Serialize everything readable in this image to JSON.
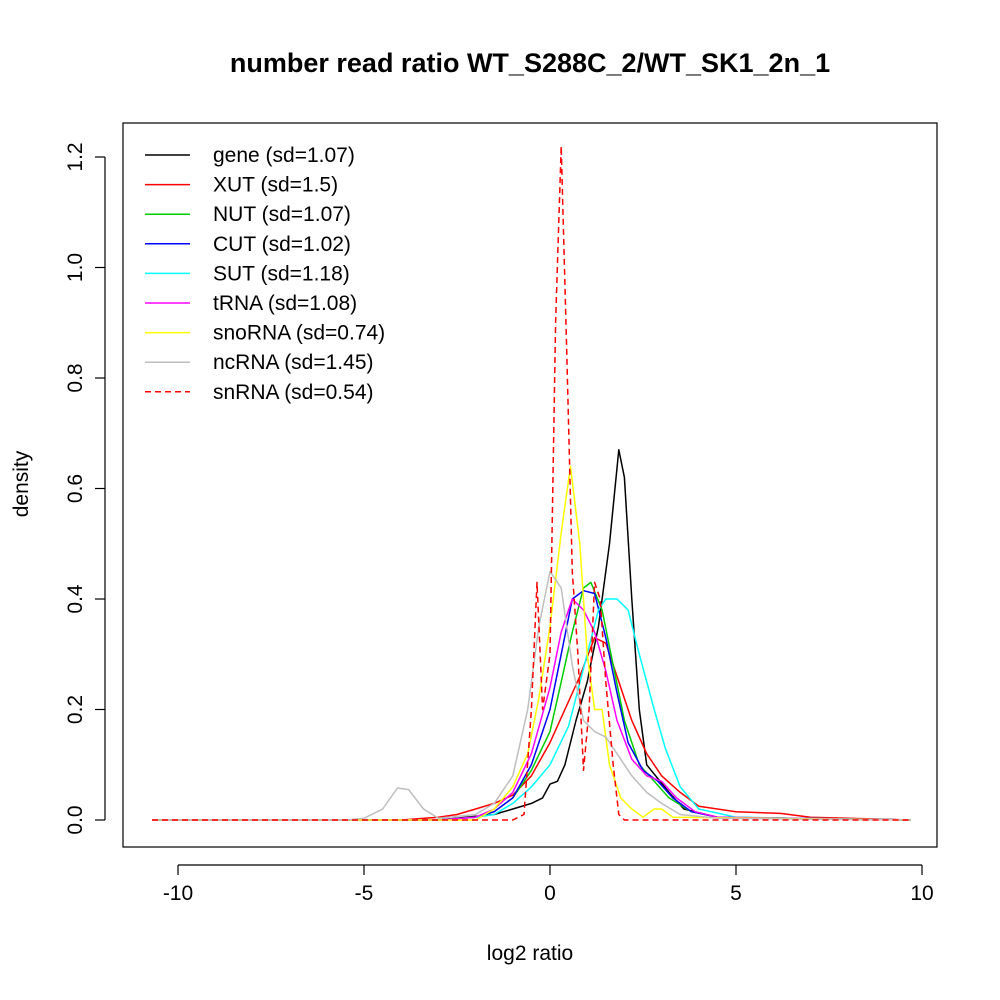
{
  "chart_data": {
    "type": "line",
    "title": "number read ratio WT_S288C_2/WT_SK1_2n_1",
    "xlabel": "log2 ratio",
    "ylabel": "density",
    "xlim": [
      -10.7,
      9.7
    ],
    "ylim": [
      0.0,
      1.22
    ],
    "x_ticks": [
      -10,
      -5,
      0,
      5,
      10
    ],
    "x_tick_labels": [
      "-10",
      "-5",
      "0",
      "5",
      "10"
    ],
    "y_ticks": [
      0.0,
      0.2,
      0.4,
      0.6,
      0.8,
      1.0,
      1.2
    ],
    "y_tick_labels": [
      "0.0",
      "0.2",
      "0.4",
      "0.6",
      "0.8",
      "1.0",
      "1.2"
    ],
    "grid": false,
    "legend_position": "top-left",
    "series": [
      {
        "name": "gene (sd=1.07)",
        "color": "#000000",
        "dashed": false,
        "points": [
          [
            -10.7,
            0
          ],
          [
            -3,
            0
          ],
          [
            -1.5,
            0.01
          ],
          [
            -1,
            0.02
          ],
          [
            -0.5,
            0.03
          ],
          [
            -0.2,
            0.04
          ],
          [
            0,
            0.065
          ],
          [
            0.2,
            0.07
          ],
          [
            0.4,
            0.1
          ],
          [
            0.7,
            0.18
          ],
          [
            1,
            0.25
          ],
          [
            1.3,
            0.35
          ],
          [
            1.6,
            0.5
          ],
          [
            1.85,
            0.67
          ],
          [
            2,
            0.62
          ],
          [
            2.2,
            0.4
          ],
          [
            2.4,
            0.2
          ],
          [
            2.6,
            0.1
          ],
          [
            2.9,
            0.075
          ],
          [
            3.2,
            0.05
          ],
          [
            3.6,
            0.02
          ],
          [
            4.5,
            0.005
          ],
          [
            9.7,
            0
          ]
        ]
      },
      {
        "name": "XUT (sd=1.5)",
        "color": "#ff0000",
        "dashed": false,
        "points": [
          [
            -10.7,
            0
          ],
          [
            -4,
            0
          ],
          [
            -3,
            0.005
          ],
          [
            -2.5,
            0.01
          ],
          [
            -2,
            0.02
          ],
          [
            -1.5,
            0.03
          ],
          [
            -1,
            0.045
          ],
          [
            -0.5,
            0.08
          ],
          [
            0,
            0.14
          ],
          [
            0.4,
            0.2
          ],
          [
            0.8,
            0.26
          ],
          [
            1.2,
            0.33
          ],
          [
            1.5,
            0.32
          ],
          [
            1.8,
            0.26
          ],
          [
            2.2,
            0.18
          ],
          [
            2.6,
            0.12
          ],
          [
            3,
            0.08
          ],
          [
            3.5,
            0.05
          ],
          [
            4,
            0.025
          ],
          [
            5,
            0.015
          ],
          [
            6.2,
            0.012
          ],
          [
            7,
            0.005
          ],
          [
            9.7,
            0
          ]
        ]
      },
      {
        "name": "NUT (sd=1.07)",
        "color": "#00cd00",
        "dashed": false,
        "points": [
          [
            -10.7,
            0
          ],
          [
            -3,
            0
          ],
          [
            -2,
            0.005
          ],
          [
            -1.5,
            0.015
          ],
          [
            -1,
            0.04
          ],
          [
            -0.5,
            0.09
          ],
          [
            0,
            0.16
          ],
          [
            0.3,
            0.25
          ],
          [
            0.6,
            0.34
          ],
          [
            0.9,
            0.42
          ],
          [
            1.1,
            0.43
          ],
          [
            1.4,
            0.38
          ],
          [
            1.7,
            0.28
          ],
          [
            2,
            0.18
          ],
          [
            2.4,
            0.1
          ],
          [
            2.8,
            0.07
          ],
          [
            3.2,
            0.04
          ],
          [
            3.8,
            0.015
          ],
          [
            4.5,
            0.005
          ],
          [
            9.7,
            0
          ]
        ]
      },
      {
        "name": "CUT (sd=1.02)",
        "color": "#0000ff",
        "dashed": false,
        "points": [
          [
            -10.7,
            0
          ],
          [
            -3,
            0
          ],
          [
            -2,
            0.005
          ],
          [
            -1.5,
            0.015
          ],
          [
            -1,
            0.04
          ],
          [
            -0.5,
            0.1
          ],
          [
            0,
            0.2
          ],
          [
            0.3,
            0.3
          ],
          [
            0.6,
            0.4
          ],
          [
            0.9,
            0.415
          ],
          [
            1.2,
            0.41
          ],
          [
            1.5,
            0.33
          ],
          [
            1.8,
            0.23
          ],
          [
            2.1,
            0.14
          ],
          [
            2.5,
            0.09
          ],
          [
            2.9,
            0.07
          ],
          [
            3.3,
            0.04
          ],
          [
            3.8,
            0.015
          ],
          [
            4.5,
            0.005
          ],
          [
            9.7,
            0
          ]
        ]
      },
      {
        "name": "SUT (sd=1.18)",
        "color": "#00ffff",
        "dashed": false,
        "points": [
          [
            -10.7,
            0
          ],
          [
            -3,
            0
          ],
          [
            -2,
            0.005
          ],
          [
            -1.5,
            0.01
          ],
          [
            -1,
            0.03
          ],
          [
            -0.5,
            0.06
          ],
          [
            0,
            0.1
          ],
          [
            0.5,
            0.17
          ],
          [
            1,
            0.3
          ],
          [
            1.3,
            0.38
          ],
          [
            1.5,
            0.4
          ],
          [
            1.8,
            0.4
          ],
          [
            2.1,
            0.38
          ],
          [
            2.4,
            0.3
          ],
          [
            2.8,
            0.2
          ],
          [
            3.1,
            0.13
          ],
          [
            3.5,
            0.06
          ],
          [
            4,
            0.02
          ],
          [
            5,
            0.005
          ],
          [
            9.7,
            0
          ]
        ]
      },
      {
        "name": "tRNA (sd=1.08)",
        "color": "#ff00ff",
        "dashed": false,
        "points": [
          [
            -10.7,
            0
          ],
          [
            -3,
            0
          ],
          [
            -2,
            0.005
          ],
          [
            -1.5,
            0.02
          ],
          [
            -1,
            0.05
          ],
          [
            -0.5,
            0.12
          ],
          [
            0,
            0.24
          ],
          [
            0.3,
            0.34
          ],
          [
            0.6,
            0.4
          ],
          [
            0.9,
            0.38
          ],
          [
            1.2,
            0.34
          ],
          [
            1.5,
            0.27
          ],
          [
            1.8,
            0.18
          ],
          [
            2.2,
            0.11
          ],
          [
            2.6,
            0.08
          ],
          [
            3,
            0.07
          ],
          [
            3.4,
            0.04
          ],
          [
            3.9,
            0.015
          ],
          [
            4.5,
            0.005
          ],
          [
            9.7,
            0
          ]
        ]
      },
      {
        "name": "snoRNA (sd=0.74)",
        "color": "#ffff00",
        "dashed": false,
        "points": [
          [
            -10.7,
            0
          ],
          [
            -2,
            0
          ],
          [
            -1.5,
            0.02
          ],
          [
            -1,
            0.06
          ],
          [
            -0.6,
            0.12
          ],
          [
            -0.3,
            0.22
          ],
          [
            0,
            0.35
          ],
          [
            0.3,
            0.52
          ],
          [
            0.55,
            0.64
          ],
          [
            0.8,
            0.5
          ],
          [
            1,
            0.3
          ],
          [
            1.2,
            0.2
          ],
          [
            1.4,
            0.2
          ],
          [
            1.6,
            0.1
          ],
          [
            1.9,
            0.04
          ],
          [
            2.2,
            0.02
          ],
          [
            2.5,
            0.005
          ],
          [
            2.8,
            0.02
          ],
          [
            3,
            0.02
          ],
          [
            3.3,
            0.005
          ],
          [
            9.7,
            0
          ]
        ]
      },
      {
        "name": "ncRNA (sd=1.45)",
        "color": "#bebebe",
        "dashed": false,
        "points": [
          [
            -10.7,
            0
          ],
          [
            -5.5,
            0
          ],
          [
            -5,
            0.003
          ],
          [
            -4.5,
            0.02
          ],
          [
            -4.1,
            0.058
          ],
          [
            -3.8,
            0.055
          ],
          [
            -3.4,
            0.02
          ],
          [
            -3,
            0.003
          ],
          [
            -2,
            0.01
          ],
          [
            -1.5,
            0.03
          ],
          [
            -1,
            0.08
          ],
          [
            -0.6,
            0.2
          ],
          [
            -0.3,
            0.35
          ],
          [
            0,
            0.45
          ],
          [
            0.3,
            0.42
          ],
          [
            0.6,
            0.28
          ],
          [
            0.9,
            0.18
          ],
          [
            1.2,
            0.16
          ],
          [
            1.5,
            0.15
          ],
          [
            1.8,
            0.12
          ],
          [
            2.2,
            0.08
          ],
          [
            2.6,
            0.05
          ],
          [
            3,
            0.03
          ],
          [
            3.5,
            0.01
          ],
          [
            4.5,
            0.003
          ],
          [
            9.7,
            0
          ]
        ]
      },
      {
        "name": "snRNA (sd=0.54)",
        "color": "#ff0000",
        "dashed": true,
        "points": [
          [
            -10.7,
            0
          ],
          [
            -1,
            0
          ],
          [
            -0.7,
            0.01
          ],
          [
            -0.5,
            0.2
          ],
          [
            -0.35,
            0.43
          ],
          [
            -0.2,
            0.2
          ],
          [
            0,
            0.3
          ],
          [
            0.15,
            0.9
          ],
          [
            0.3,
            1.22
          ],
          [
            0.45,
            0.85
          ],
          [
            0.6,
            0.45
          ],
          [
            0.75,
            0.3
          ],
          [
            0.9,
            0.09
          ],
          [
            1.05,
            0.2
          ],
          [
            1.2,
            0.43
          ],
          [
            1.35,
            0.4
          ],
          [
            1.5,
            0.25
          ],
          [
            1.7,
            0.1
          ],
          [
            1.85,
            0.01
          ],
          [
            2,
            0
          ],
          [
            9.7,
            0
          ]
        ]
      }
    ]
  }
}
